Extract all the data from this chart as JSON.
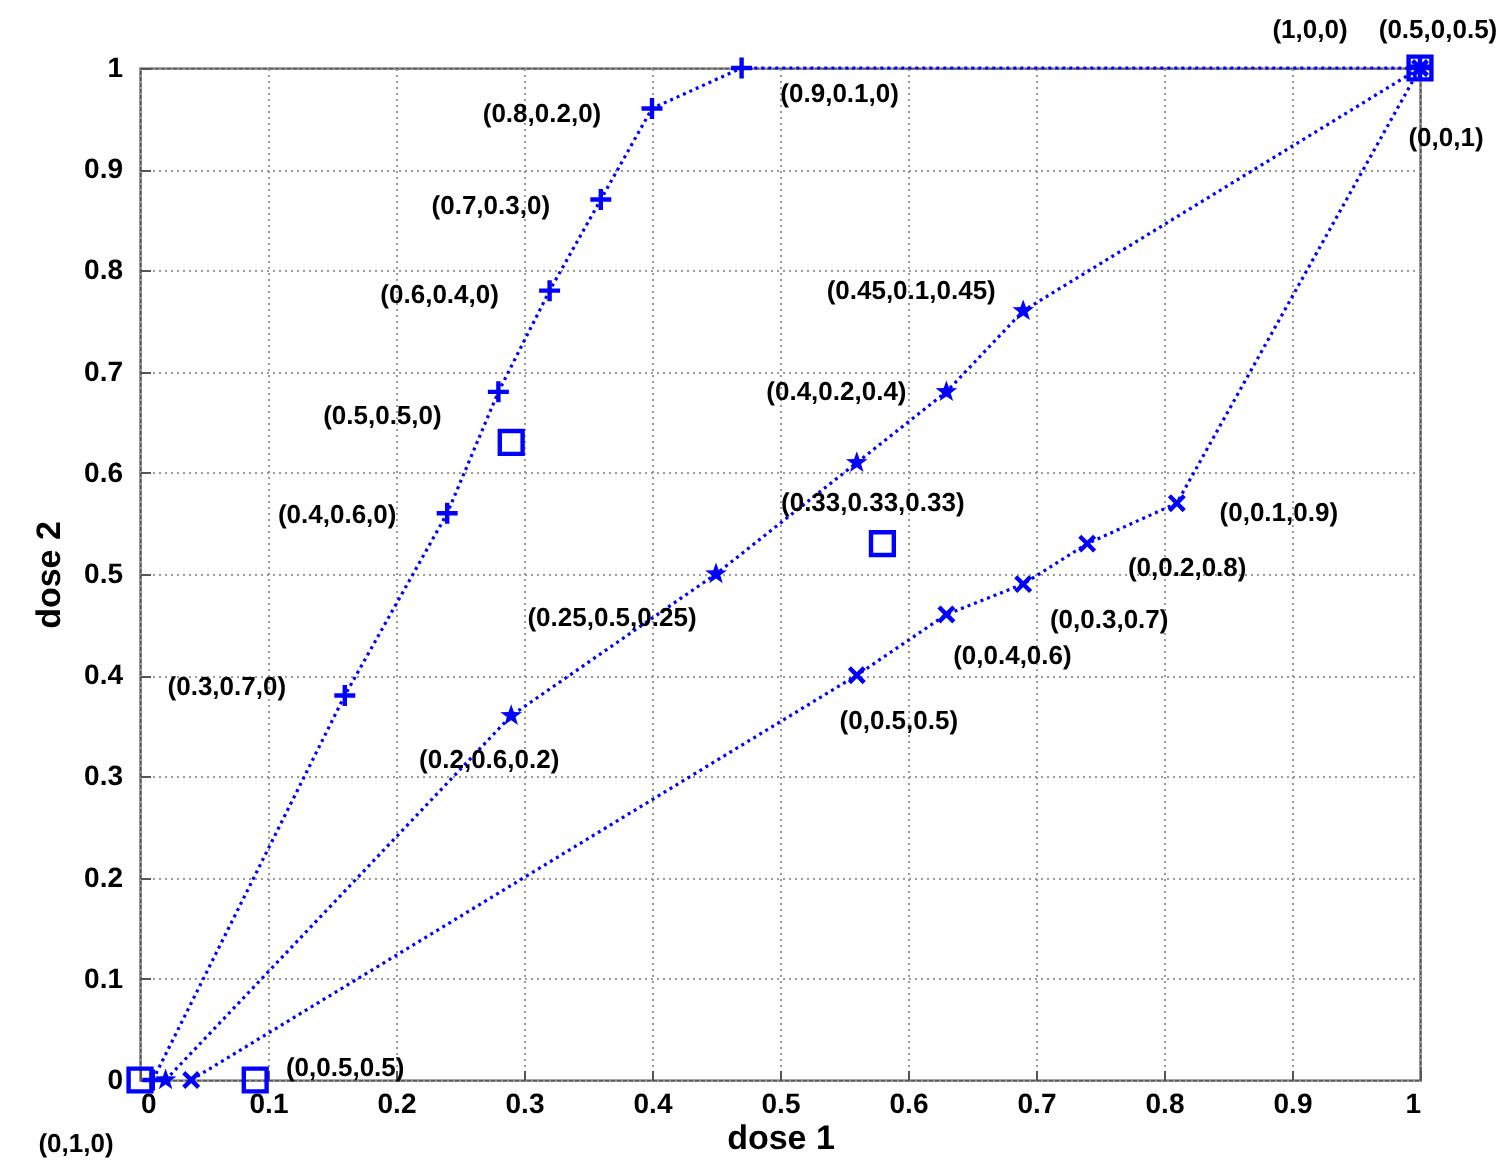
{
  "chart_data": {
    "type": "line",
    "xlabel": "dose 1",
    "ylabel": "dose 2",
    "xlim": [
      0,
      1
    ],
    "ylim": [
      0,
      1
    ],
    "xticks": [
      0,
      0.1,
      0.2,
      0.3,
      0.4,
      0.5,
      0.6,
      0.7,
      0.8,
      0.9,
      1
    ],
    "yticks": [
      0,
      0.1,
      0.2,
      0.3,
      0.4,
      0.5,
      0.6,
      0.7,
      0.8,
      0.9,
      1
    ],
    "grid": true,
    "line_style": "dotted",
    "series": [
      {
        "marker": "cross",
        "color": "#0000ff",
        "x": [
          0.01,
          0.16,
          0.24,
          0.28,
          0.32,
          0.36,
          0.4,
          0.47,
          1
        ],
        "values": [
          0,
          0.38,
          0.56,
          0.68,
          0.78,
          0.87,
          0.96,
          1,
          1
        ]
      },
      {
        "marker": "star",
        "color": "#0000ff",
        "x": [
          0.02,
          0.29,
          0.45,
          0.56,
          0.63,
          0.69,
          1
        ],
        "values": [
          0,
          0.36,
          0.5,
          0.61,
          0.68,
          0.76,
          1
        ]
      },
      {
        "marker": "x",
        "color": "#0000ff",
        "x": [
          0.04,
          0.56,
          0.63,
          0.69,
          0.74,
          0.81,
          1
        ],
        "values": [
          0,
          0.4,
          0.46,
          0.49,
          0.53,
          0.57,
          1
        ]
      },
      {
        "type": "scatter",
        "marker": "square",
        "color": "#0000ff",
        "x": [
          0,
          0.09,
          0.29,
          0.58,
          1
        ],
        "values": [
          0,
          0,
          0.63,
          0.53,
          1
        ]
      }
    ],
    "annotations": [
      {
        "text": "(0.9,0.1,0)",
        "x": 0.47,
        "y": 1
      },
      {
        "text": "(0.8,0.2,0)",
        "x": 0.4,
        "y": 0.96
      },
      {
        "text": "(0.7,0.3,0)",
        "x": 0.36,
        "y": 0.87
      },
      {
        "text": "(0.6,0.4,0)",
        "x": 0.32,
        "y": 0.78
      },
      {
        "text": "(0.5,0.5,0)",
        "x": 0.28,
        "y": 0.68
      },
      {
        "text": "(0.4,0.6,0)",
        "x": 0.24,
        "y": 0.56
      },
      {
        "text": "(0.3,0.7,0)",
        "x": 0.16,
        "y": 0.38
      },
      {
        "text": "(0.2,0.6,0.2)",
        "x": 0.29,
        "y": 0.36
      },
      {
        "text": "(0.25,0.5,0.25)",
        "x": 0.45,
        "y": 0.5
      },
      {
        "text": "(0.33,0.33,0.33)",
        "x": 0.56,
        "y": 0.61
      },
      {
        "text": "(0.4,0.2,0.4)",
        "x": 0.63,
        "y": 0.68
      },
      {
        "text": "(0.45,0.1,0.45)",
        "x": 0.69,
        "y": 0.76
      },
      {
        "text": "(1,0,0)",
        "x": 1,
        "y": 1
      },
      {
        "text": "(0.5,0,0.5)",
        "x": 1,
        "y": 1
      },
      {
        "text": "(0,0,1)",
        "x": 1,
        "y": 1
      },
      {
        "text": "(0,0.1,0.9)",
        "x": 0.81,
        "y": 0.57
      },
      {
        "text": "(0,0.2,0.8)",
        "x": 0.74,
        "y": 0.53
      },
      {
        "text": "(0,0.3,0.7)",
        "x": 0.69,
        "y": 0.49
      },
      {
        "text": "(0,0.4,0.6)",
        "x": 0.63,
        "y": 0.46
      },
      {
        "text": "(0,0.5,0.5)",
        "x": 0.56,
        "y": 0.4
      },
      {
        "text": "(0,0.5,0.5)",
        "x": 0.09,
        "y": 0
      },
      {
        "text": "(0,1,0)",
        "x": 0,
        "y": 0
      }
    ]
  }
}
